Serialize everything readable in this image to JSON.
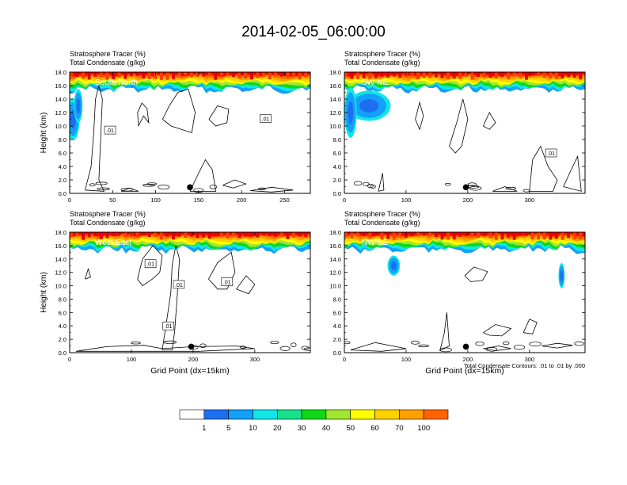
{
  "figure": {
    "title": "2014-02-05_06:00:00",
    "footnote": "Total Condensate Contours: .01 to .01 by .000"
  },
  "colorbar": {
    "colors": [
      "#ffffff",
      "#1e6ef0",
      "#12a0f8",
      "#10e6e6",
      "#16e28c",
      "#10d818",
      "#a0e632",
      "#ffff00",
      "#ffd200",
      "#ffa000",
      "#ff6400",
      "#ff0000"
    ],
    "labels": [
      "1",
      "5",
      "10",
      "20",
      "30",
      "40",
      "50",
      "60",
      "70",
      "100"
    ]
  },
  "chart_data": [
    {
      "type": "heatmap",
      "panel": "South-North",
      "label": "South-North",
      "title_lines": [
        "Stratosphere Tracer   (%)",
        "Total Condensate   (g/kg)"
      ],
      "ylabel": "Height (km)",
      "xlabel": "",
      "xlim": [
        0,
        280
      ],
      "ylim": [
        0,
        18
      ],
      "xticks": [
        "0",
        "50",
        "100",
        "150",
        "200",
        "250"
      ],
      "xtick_values": [
        0,
        50,
        100,
        150,
        200,
        250
      ],
      "yticks": [
        "0.0",
        "2.0",
        "4.0",
        "6.0",
        "8.0",
        "10.0",
        "12.0",
        "14.0",
        "16.0",
        "18.0"
      ],
      "contour_labels": [
        ".01",
        ".01"
      ],
      "tracer_top_km": 17.8,
      "tracer_base_km": 15.4,
      "marker_x": 140
    },
    {
      "type": "heatmap",
      "panel": "SW-NE",
      "label": "SW-NE",
      "title_lines": [
        "Stratosphere Tracer   (%)",
        "Total Condensate   (g/kg)"
      ],
      "ylabel": "",
      "xlabel": "",
      "xlim": [
        0,
        390
      ],
      "ylim": [
        0,
        18
      ],
      "xticks": [
        "0",
        "100",
        "200",
        "300"
      ],
      "xtick_values": [
        0,
        100,
        200,
        300
      ],
      "yticks": [
        "0.0",
        "2.0",
        "4.0",
        "6.0",
        "8.0",
        "10.0",
        "12.0",
        "14.0",
        "16.0",
        "18.0"
      ],
      "contour_labels": [
        ".01"
      ],
      "tracer_top_km": 17.8,
      "tracer_base_km": 15.4,
      "marker_x": 197
    },
    {
      "type": "heatmap",
      "panel": "West-East",
      "label": "West-East",
      "title_lines": [
        "Stratosphere Tracer   (%)",
        "Total Condensate   (g/kg)"
      ],
      "ylabel": "Height (km)",
      "xlabel": "Grid Point (dx=15km)",
      "xlim": [
        0,
        390
      ],
      "ylim": [
        0,
        18
      ],
      "xticks": [
        "0",
        "100",
        "200",
        "300"
      ],
      "xtick_values": [
        0,
        100,
        200,
        300
      ],
      "yticks": [
        "0.0",
        "2.0",
        "4.0",
        "6.0",
        "8.0",
        "10.0",
        "12.0",
        "14.0",
        "16.0",
        "18.0"
      ],
      "contour_labels": [
        ".01",
        ".01",
        ".01",
        ".01"
      ],
      "tracer_top_km": 17.8,
      "tracer_base_km": 15.4,
      "marker_x": 197
    },
    {
      "type": "heatmap",
      "panel": "NW-SE",
      "label": "NW-SE",
      "title_lines": [
        "Stratosphere Tracer   (%)",
        "Total Condensate   (g/kg)"
      ],
      "ylabel": "",
      "xlabel": "Grid Point (dx=15km)",
      "xlim": [
        0,
        390
      ],
      "ylim": [
        0,
        18
      ],
      "xticks": [
        "0",
        "100",
        "200",
        "300"
      ],
      "xtick_values": [
        0,
        100,
        200,
        300
      ],
      "yticks": [
        "0.0",
        "2.0",
        "4.0",
        "6.0",
        "8.0",
        "10.0",
        "12.0",
        "14.0",
        "16.0",
        "18.0"
      ],
      "contour_labels": [],
      "tracer_top_km": 17.8,
      "tracer_base_km": 15.4,
      "marker_x": 197
    }
  ]
}
